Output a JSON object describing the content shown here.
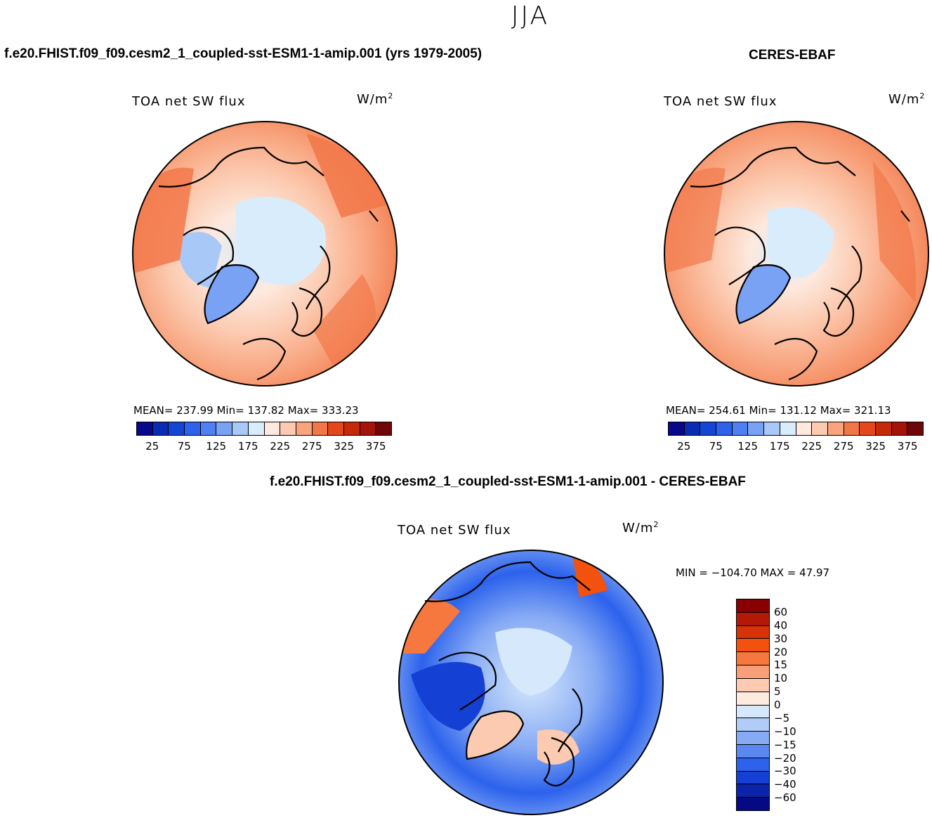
{
  "season": "JJA",
  "panels": {
    "model": {
      "case_title": "f.e20.FHIST.f09_f09.cesm2_1_coupled-sst-ESM1-1-amip.001 (yrs 1979-2005)",
      "field": "TOA net SW flux",
      "unit_base": "W/m",
      "unit_exp": "2",
      "stats": "MEAN= 237.99   Min= 137.82   Max= 333.23"
    },
    "obs": {
      "case_title": "CERES-EBAF",
      "field": "TOA net SW flux",
      "unit_base": "W/m",
      "unit_exp": "2",
      "stats": "MEAN= 254.61   Min= 131.12   Max= 321.13"
    },
    "diff": {
      "case_title": "f.e20.FHIST.f09_f09.cesm2_1_coupled-sst-ESM1-1-amip.001 - CERES-EBAF",
      "field": "TOA net SW flux",
      "unit_base": "W/m",
      "unit_exp": "2",
      "stats": "MIN = −104.70 MAX =   47.97"
    }
  },
  "colorbars": {
    "absolute": {
      "colors": [
        "#08088a",
        "#0a2cb4",
        "#1446d6",
        "#2e62ec",
        "#4f80f2",
        "#7aa2f4",
        "#a8c8f8",
        "#d8ecfc",
        "#fde9de",
        "#fccab0",
        "#f8a47e",
        "#f27748",
        "#e4471c",
        "#c42a0a",
        "#a4140a",
        "#6e0808"
      ],
      "labels": [
        "25",
        "75",
        "125",
        "175",
        "225",
        "275",
        "325",
        "375"
      ]
    },
    "difference": {
      "colors": [
        "#8a0000",
        "#b41806",
        "#d83208",
        "#f2520e",
        "#f6783e",
        "#f89e78",
        "#fccab0",
        "#fdebdf",
        "#d6e8fc",
        "#b2ccf8",
        "#86aaf4",
        "#5a88f0",
        "#2c62ec",
        "#1440d4",
        "#0a24aa",
        "#050a84"
      ],
      "labels": [
        "60",
        "40",
        "30",
        "20",
        "15",
        "10",
        "5",
        "0",
        "−5",
        "−10",
        "−15",
        "−20",
        "−30",
        "−40",
        "−60"
      ]
    }
  }
}
